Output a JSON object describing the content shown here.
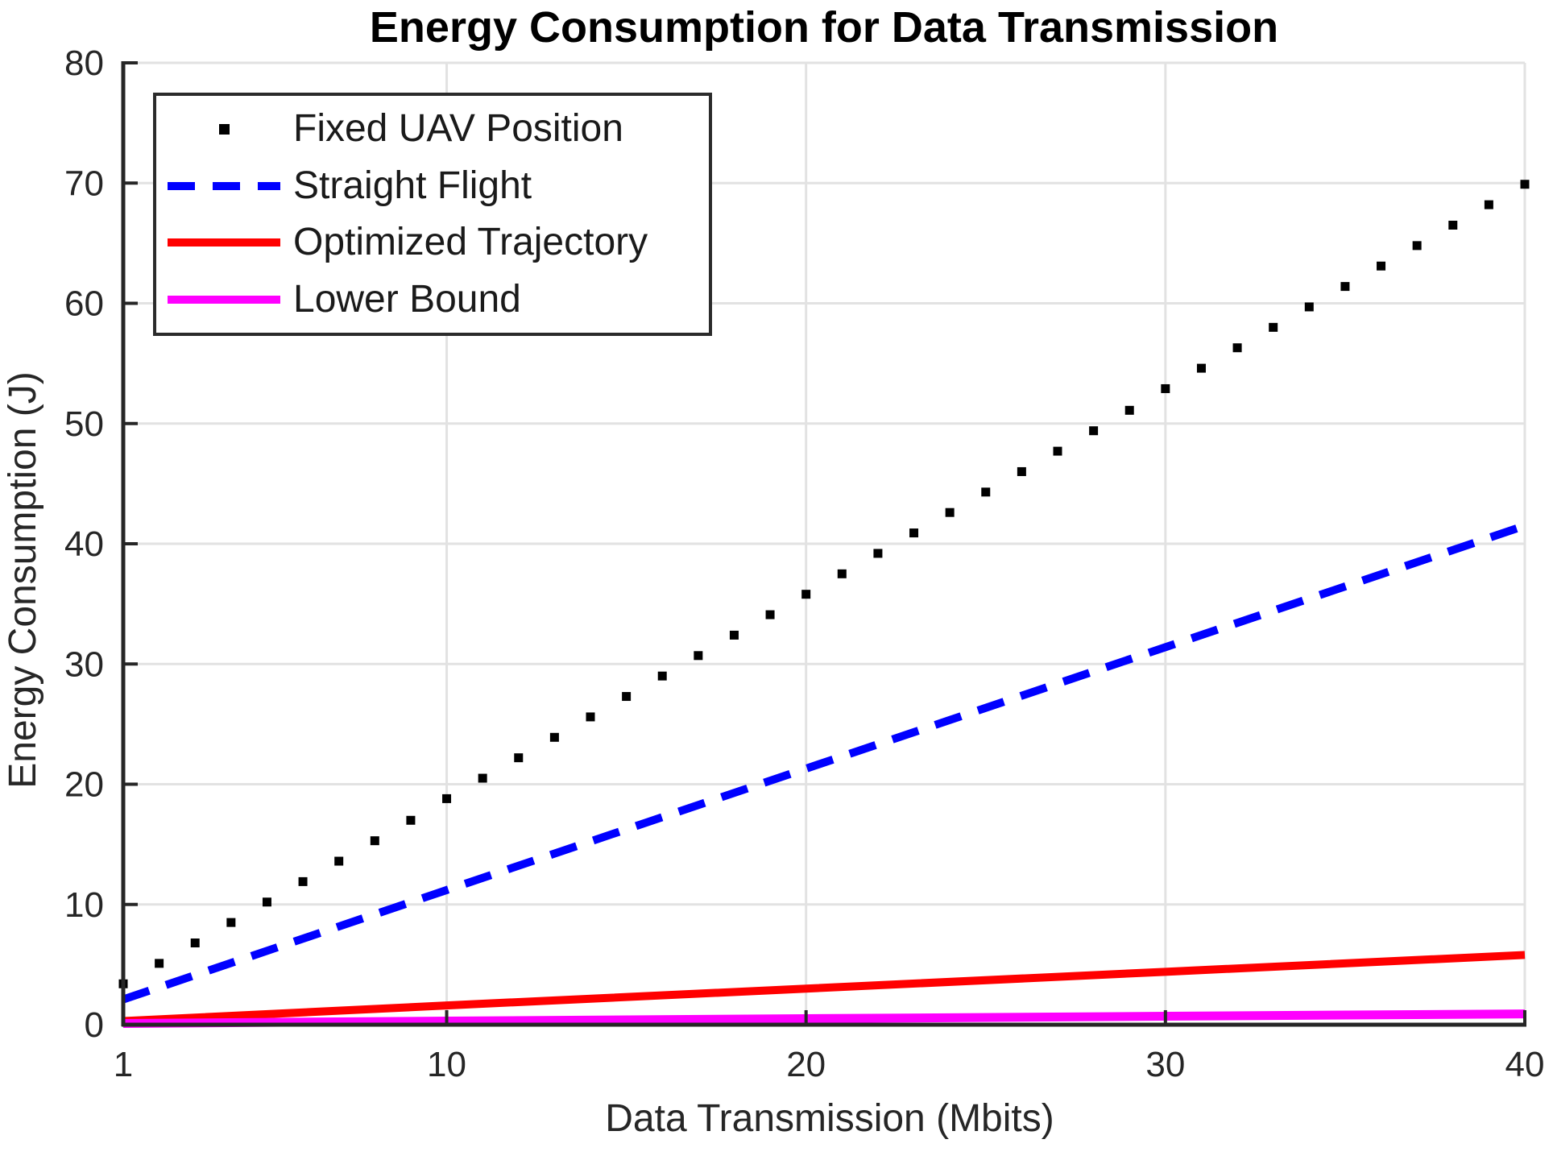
{
  "figure": {
    "background": "#ffffff",
    "axis_color": "#262626",
    "grid_color": "#e2e2e2",
    "tick_label_color": "#262626"
  },
  "chart_data": {
    "type": "scatter",
    "title": "Energy Consumption for Data Transmission",
    "xlabel": "Data Transmission (Mbits)",
    "ylabel": "Energy Consumption (J)",
    "xlim": [
      1,
      40
    ],
    "ylim": [
      0,
      80
    ],
    "x_ticks": [
      1,
      10,
      20,
      30,
      40
    ],
    "y_ticks": [
      0,
      10,
      20,
      30,
      40,
      50,
      60,
      70,
      80
    ],
    "grid": true,
    "legend_position": "top-left",
    "series": [
      {
        "name": "Fixed UAV Position",
        "type": "scatter",
        "marker": "dot",
        "color": "#000000",
        "x": [
          1,
          2,
          3,
          4,
          5,
          6,
          7,
          8,
          9,
          10,
          11,
          12,
          13,
          14,
          15,
          16,
          17,
          18,
          19,
          20,
          21,
          22,
          23,
          24,
          25,
          26,
          27,
          28,
          29,
          30,
          31,
          32,
          33,
          34,
          35,
          36,
          37,
          38,
          39,
          40
        ],
        "values": [
          3.4,
          5.1,
          6.8,
          8.5,
          10.2,
          11.9,
          13.6,
          15.3,
          17,
          18.8,
          20.5,
          22.2,
          23.9,
          25.6,
          27.3,
          29,
          30.7,
          32.4,
          34.1,
          35.8,
          37.5,
          39.2,
          40.9,
          42.6,
          44.3,
          46,
          47.7,
          49.4,
          51.1,
          52.9,
          54.6,
          56.3,
          58,
          59.7,
          61.4,
          63.1,
          64.8,
          66.5,
          68.2,
          69.9
        ]
      },
      {
        "name": "Straight Flight",
        "type": "line",
        "style": "dashed",
        "color": "#0000ff",
        "x": [
          1,
          10,
          20,
          30,
          40
        ],
        "values": [
          2.1,
          11.2,
          21.3,
          31.4,
          41.5
        ]
      },
      {
        "name": "Optimized Trajectory",
        "type": "line",
        "style": "solid",
        "color": "#ff0000",
        "x": [
          1,
          10,
          20,
          30,
          40
        ],
        "values": [
          0.3,
          1.6,
          3,
          4.4,
          5.8
        ]
      },
      {
        "name": "Lower Bound",
        "type": "line",
        "style": "solid",
        "color": "#ff00ff",
        "x": [
          1,
          10,
          20,
          30,
          40
        ],
        "values": [
          0.1,
          0.3,
          0.5,
          0.7,
          0.9
        ]
      }
    ]
  }
}
